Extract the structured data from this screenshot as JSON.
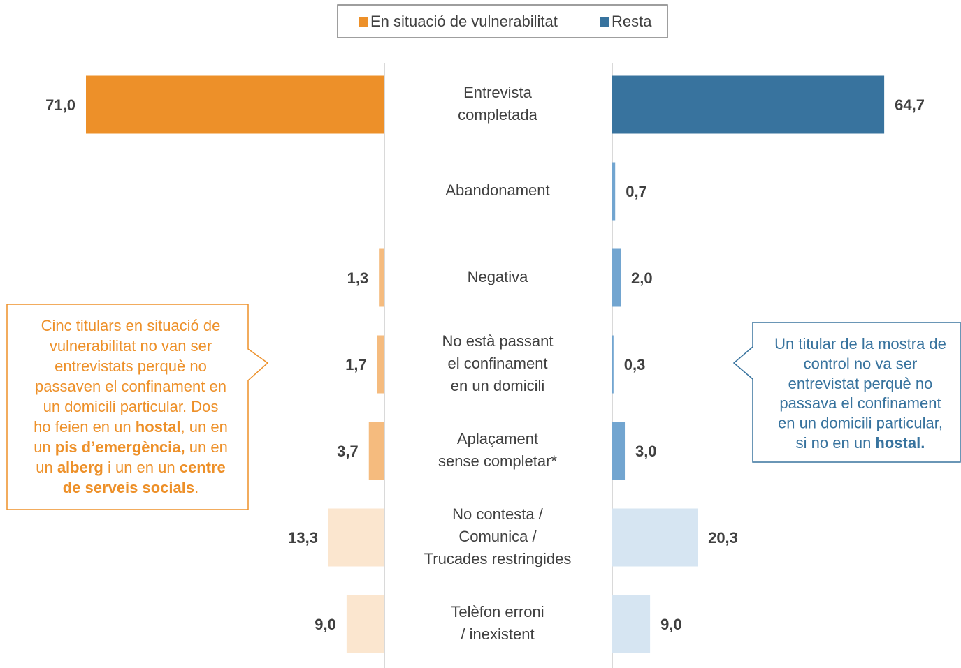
{
  "chart_data": {
    "type": "butterfly-bar",
    "categories": [
      [
        "Entrevista",
        "completada"
      ],
      [
        "Abandonament"
      ],
      [
        "Negativa"
      ],
      [
        "No està passant",
        "el confinament",
        "en un domicili"
      ],
      [
        "Aplaçament",
        "sense completar*"
      ],
      [
        "No contesta /",
        "Comunica /",
        "Trucades restringides"
      ],
      [
        "Telèfon erroni",
        "/ inexistent"
      ]
    ],
    "series": [
      {
        "name": "En situació de vulnerabilitat",
        "color": "#ed9029",
        "values": [
          71.0,
          null,
          1.3,
          1.7,
          3.7,
          13.3,
          9.0
        ],
        "value_labels": [
          "71,0",
          null,
          "1,3",
          "1,7",
          "3,7",
          "13,3",
          "9,0"
        ],
        "colors": [
          "#ed9029",
          null,
          "#f5bb7e",
          "#f5bb7e",
          "#f5bb7e",
          "#fbe6cf",
          "#fbe6cf"
        ]
      },
      {
        "name": "Resta",
        "color": "#38739e",
        "values": [
          64.7,
          0.7,
          2.0,
          0.3,
          3.0,
          20.3,
          9.0
        ],
        "value_labels": [
          "64,7",
          "0,7",
          "2,0",
          "0,3",
          "3,0",
          "20,3",
          "9,0"
        ],
        "colors": [
          "#38739e",
          "#72a5d0",
          "#72a5d0",
          "#72a5d0",
          "#72a5d0",
          "#d6e5f2",
          "#d6e5f2"
        ]
      }
    ],
    "annotations": [
      {
        "side": "left",
        "color": "#ed9029",
        "lines": [
          [
            {
              "text": "Cinc titulars en situació de"
            }
          ],
          [
            {
              "text": "vulnerabilitat no van ser"
            }
          ],
          [
            {
              "text": "entrevistats perquè no"
            }
          ],
          [
            {
              "text": "passaven el confinament en"
            }
          ],
          [
            {
              "text": "un domicili particular. Dos"
            }
          ],
          [
            {
              "text": "ho feien en un "
            },
            {
              "text": "hostal",
              "bold": true
            },
            {
              "text": ", un en"
            }
          ],
          [
            {
              "text": "un "
            },
            {
              "text": "pis d’emergència,",
              "bold": true
            },
            {
              "text": " un en"
            }
          ],
          [
            {
              "text": "un "
            },
            {
              "text": "alberg",
              "bold": true
            },
            {
              "text": " i un en un "
            },
            {
              "text": "centre",
              "bold": true
            }
          ],
          [
            {
              "text": "de serveis socials",
              "bold": true
            },
            {
              "text": "."
            }
          ]
        ]
      },
      {
        "side": "right",
        "color": "#38739e",
        "lines": [
          [
            {
              "text": "Un titular de la mostra de"
            }
          ],
          [
            {
              "text": "control no va ser"
            }
          ],
          [
            {
              "text": "entrevistat perquè no"
            }
          ],
          [
            {
              "text": "passava el confinament"
            }
          ],
          [
            {
              "text": "en un domicili particular,"
            }
          ],
          [
            {
              "text": "si no en un "
            },
            {
              "text": "hostal.",
              "bold": true
            }
          ]
        ]
      }
    ]
  }
}
